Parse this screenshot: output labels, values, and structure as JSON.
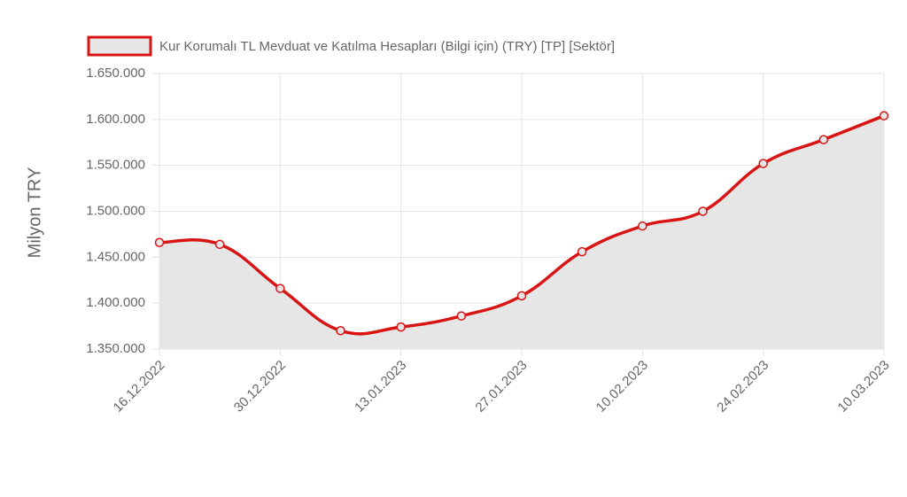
{
  "chart_data": {
    "type": "line",
    "y_label": "Milyon TRY",
    "categories": [
      "16.12.2022",
      null,
      "30.12.2022",
      null,
      "13.01.2023",
      null,
      "27.01.2023",
      null,
      "10.02.2023",
      null,
      "24.02.2023",
      null,
      "10.03.2023"
    ],
    "series": [
      {
        "name": "Kur Korumalı TL Mevduat ve Katılma Hesapları (Bilgi için) (TRY) [TP] [Sektör]",
        "color": "#d81414",
        "fill": "#e6e6e6",
        "values": [
          1466000,
          1464000,
          1416000,
          1370000,
          1374000,
          1386000,
          1408000,
          1456000,
          1484000,
          1500000,
          1552000,
          1578000,
          1604000
        ]
      }
    ],
    "ylim": [
      1350000,
      1650000
    ],
    "yticks": [
      {
        "value": 1350000,
        "label": "1.350.000"
      },
      {
        "value": 1400000,
        "label": "1.400.000"
      },
      {
        "value": 1450000,
        "label": "1.450.000"
      },
      {
        "value": 1500000,
        "label": "1.500.000"
      },
      {
        "value": 1550000,
        "label": "1.550.000"
      },
      {
        "value": 1600000,
        "label": "1.600.000"
      },
      {
        "value": 1650000,
        "label": "1.650.000"
      }
    ],
    "grid": true
  }
}
